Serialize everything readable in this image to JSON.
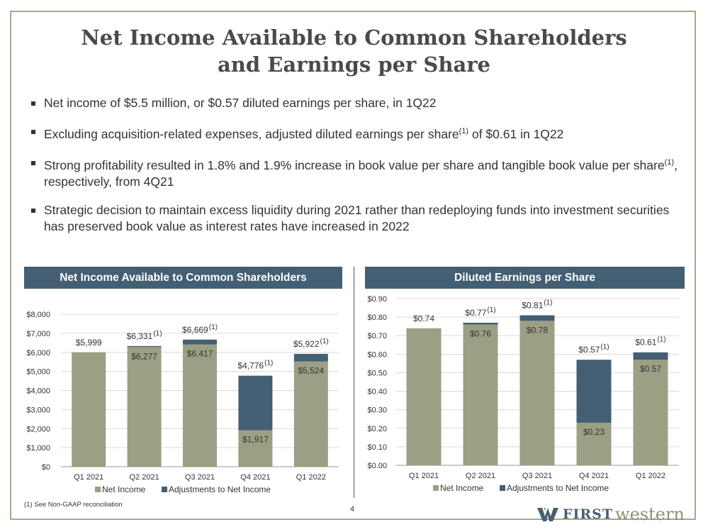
{
  "title_line1": "Net Income Available to Common Shareholders",
  "title_line2": "and Earnings per Share",
  "bullets": [
    {
      "text": "Net income of $5.5 million, or $0.57 diluted earnings per share, in 1Q22"
    },
    {
      "pre": "Excluding acquisition-related expenses, adjusted diluted earnings per share",
      "sup": "(1)",
      "post": " of $0.61 in 1Q22"
    },
    {
      "pre": "Strong profitability resulted in 1.8% and 1.9% increase in book value per share and tangible book value per share",
      "sup": "(1)",
      "post": ", respectively, from 4Q21"
    },
    {
      "text": "Strategic decision to maintain excess liquidity during 2021 rather than redeploying funds into investment securities has preserved book value as interest rates have increased in 2022"
    }
  ],
  "footnote": "(1) See Non-GAAP reconciliation",
  "page_number": "4",
  "logo": {
    "first": "FIRST",
    "western": "western"
  },
  "colors": {
    "net_income": "#9c9f83",
    "adjustments": "#445f73",
    "header_bg": "#445f73",
    "frame": "#a6a88c"
  },
  "chart_data": [
    {
      "type": "bar",
      "stacked": true,
      "title": "Net Income Available to Common Shareholders",
      "categories": [
        "Q1 2021",
        "Q2 2021",
        "Q3 2021",
        "Q4 2021",
        "Q1 2022"
      ],
      "series": [
        {
          "name": "Net Income",
          "values": [
            5999,
            6277,
            6417,
            1917,
            5524
          ]
        },
        {
          "name": "Adjustments to Net Income",
          "values": [
            0,
            54,
            252,
            2859,
            398
          ]
        }
      ],
      "inner_labels": [
        "",
        "$6,277",
        "$6,417",
        "$1,917",
        "$5,524"
      ],
      "total_labels": [
        "$5,999",
        "$6,331",
        "$6,669",
        "$4,776",
        "$5,922"
      ],
      "total_label_sup": [
        "",
        "(1)",
        "(1)",
        "(1)",
        "(1)"
      ],
      "yticks": [
        "$0",
        "$1,000",
        "$2,000",
        "$3,000",
        "$4,000",
        "$5,000",
        "$6,000",
        "$7,000",
        "$8,000"
      ],
      "ylim": [
        0,
        8000
      ],
      "legend_position": "bottom",
      "grid": true
    },
    {
      "type": "bar",
      "stacked": true,
      "title": "Diluted Earnings per Share",
      "categories": [
        "Q1 2021",
        "Q2 2021",
        "Q3 2021",
        "Q4 2021",
        "Q1 2022"
      ],
      "series": [
        {
          "name": "Net Income",
          "values": [
            0.74,
            0.76,
            0.78,
            0.23,
            0.57
          ]
        },
        {
          "name": "Adjustments to Net Income",
          "values": [
            0,
            0.01,
            0.03,
            0.34,
            0.04
          ]
        }
      ],
      "inner_labels": [
        "",
        "$0.76",
        "$0.78",
        "$0.23",
        "$0.57"
      ],
      "total_labels": [
        "$0.74",
        "$0.77",
        "$0.81",
        "$0.57",
        "$0.61"
      ],
      "total_label_sup": [
        "",
        "(1)",
        "(1)",
        "(1)",
        "(1)"
      ],
      "yticks": [
        "$0.00",
        "$0.10",
        "$0.20",
        "$0.30",
        "$0.40",
        "$0.50",
        "$0.60",
        "$0.70",
        "$0.80",
        "$0.90"
      ],
      "ylim": [
        0,
        0.9
      ],
      "legend_position": "bottom",
      "grid": true
    }
  ]
}
